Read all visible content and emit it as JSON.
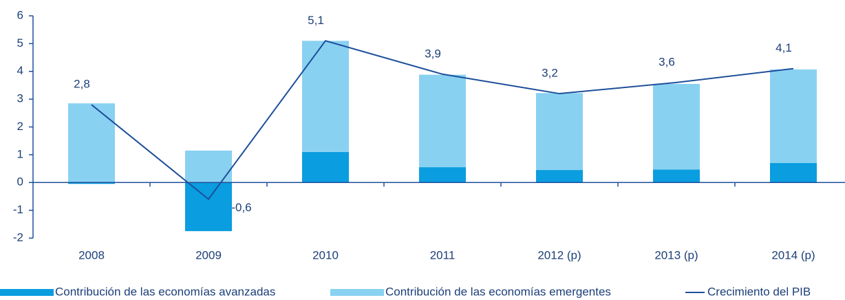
{
  "chart_data": {
    "type": "bar",
    "categories": [
      "2008",
      "2009",
      "2010",
      "2011",
      "2012 (p)",
      "2013 (p)",
      "2014 (p)"
    ],
    "series": [
      {
        "name": "Contribución de las economías avanzadas",
        "color": "#0a9ddf",
        "values": [
          -0.05,
          -1.75,
          1.1,
          0.55,
          0.45,
          0.47,
          0.7
        ]
      },
      {
        "name": "Contribución de las economías emergentes",
        "color": "#89d1f1",
        "values": [
          2.85,
          1.15,
          4.0,
          3.33,
          2.77,
          3.08,
          3.37
        ]
      },
      {
        "name": "Crecimiento del PIB",
        "type": "line",
        "color": "#1d4f9b",
        "values": [
          2.8,
          -0.6,
          5.1,
          3.9,
          3.2,
          3.6,
          4.1
        ],
        "value_labels": [
          "2,8",
          "-0,6",
          "5,1",
          "3,9",
          "3,2",
          "3,6",
          "4,1"
        ]
      }
    ],
    "stacked": true,
    "ylim": [
      -2,
      6
    ],
    "yticks": [
      -2,
      -1,
      0,
      1,
      2,
      3,
      4,
      5,
      6
    ],
    "grid": false,
    "legend": "bottom"
  }
}
